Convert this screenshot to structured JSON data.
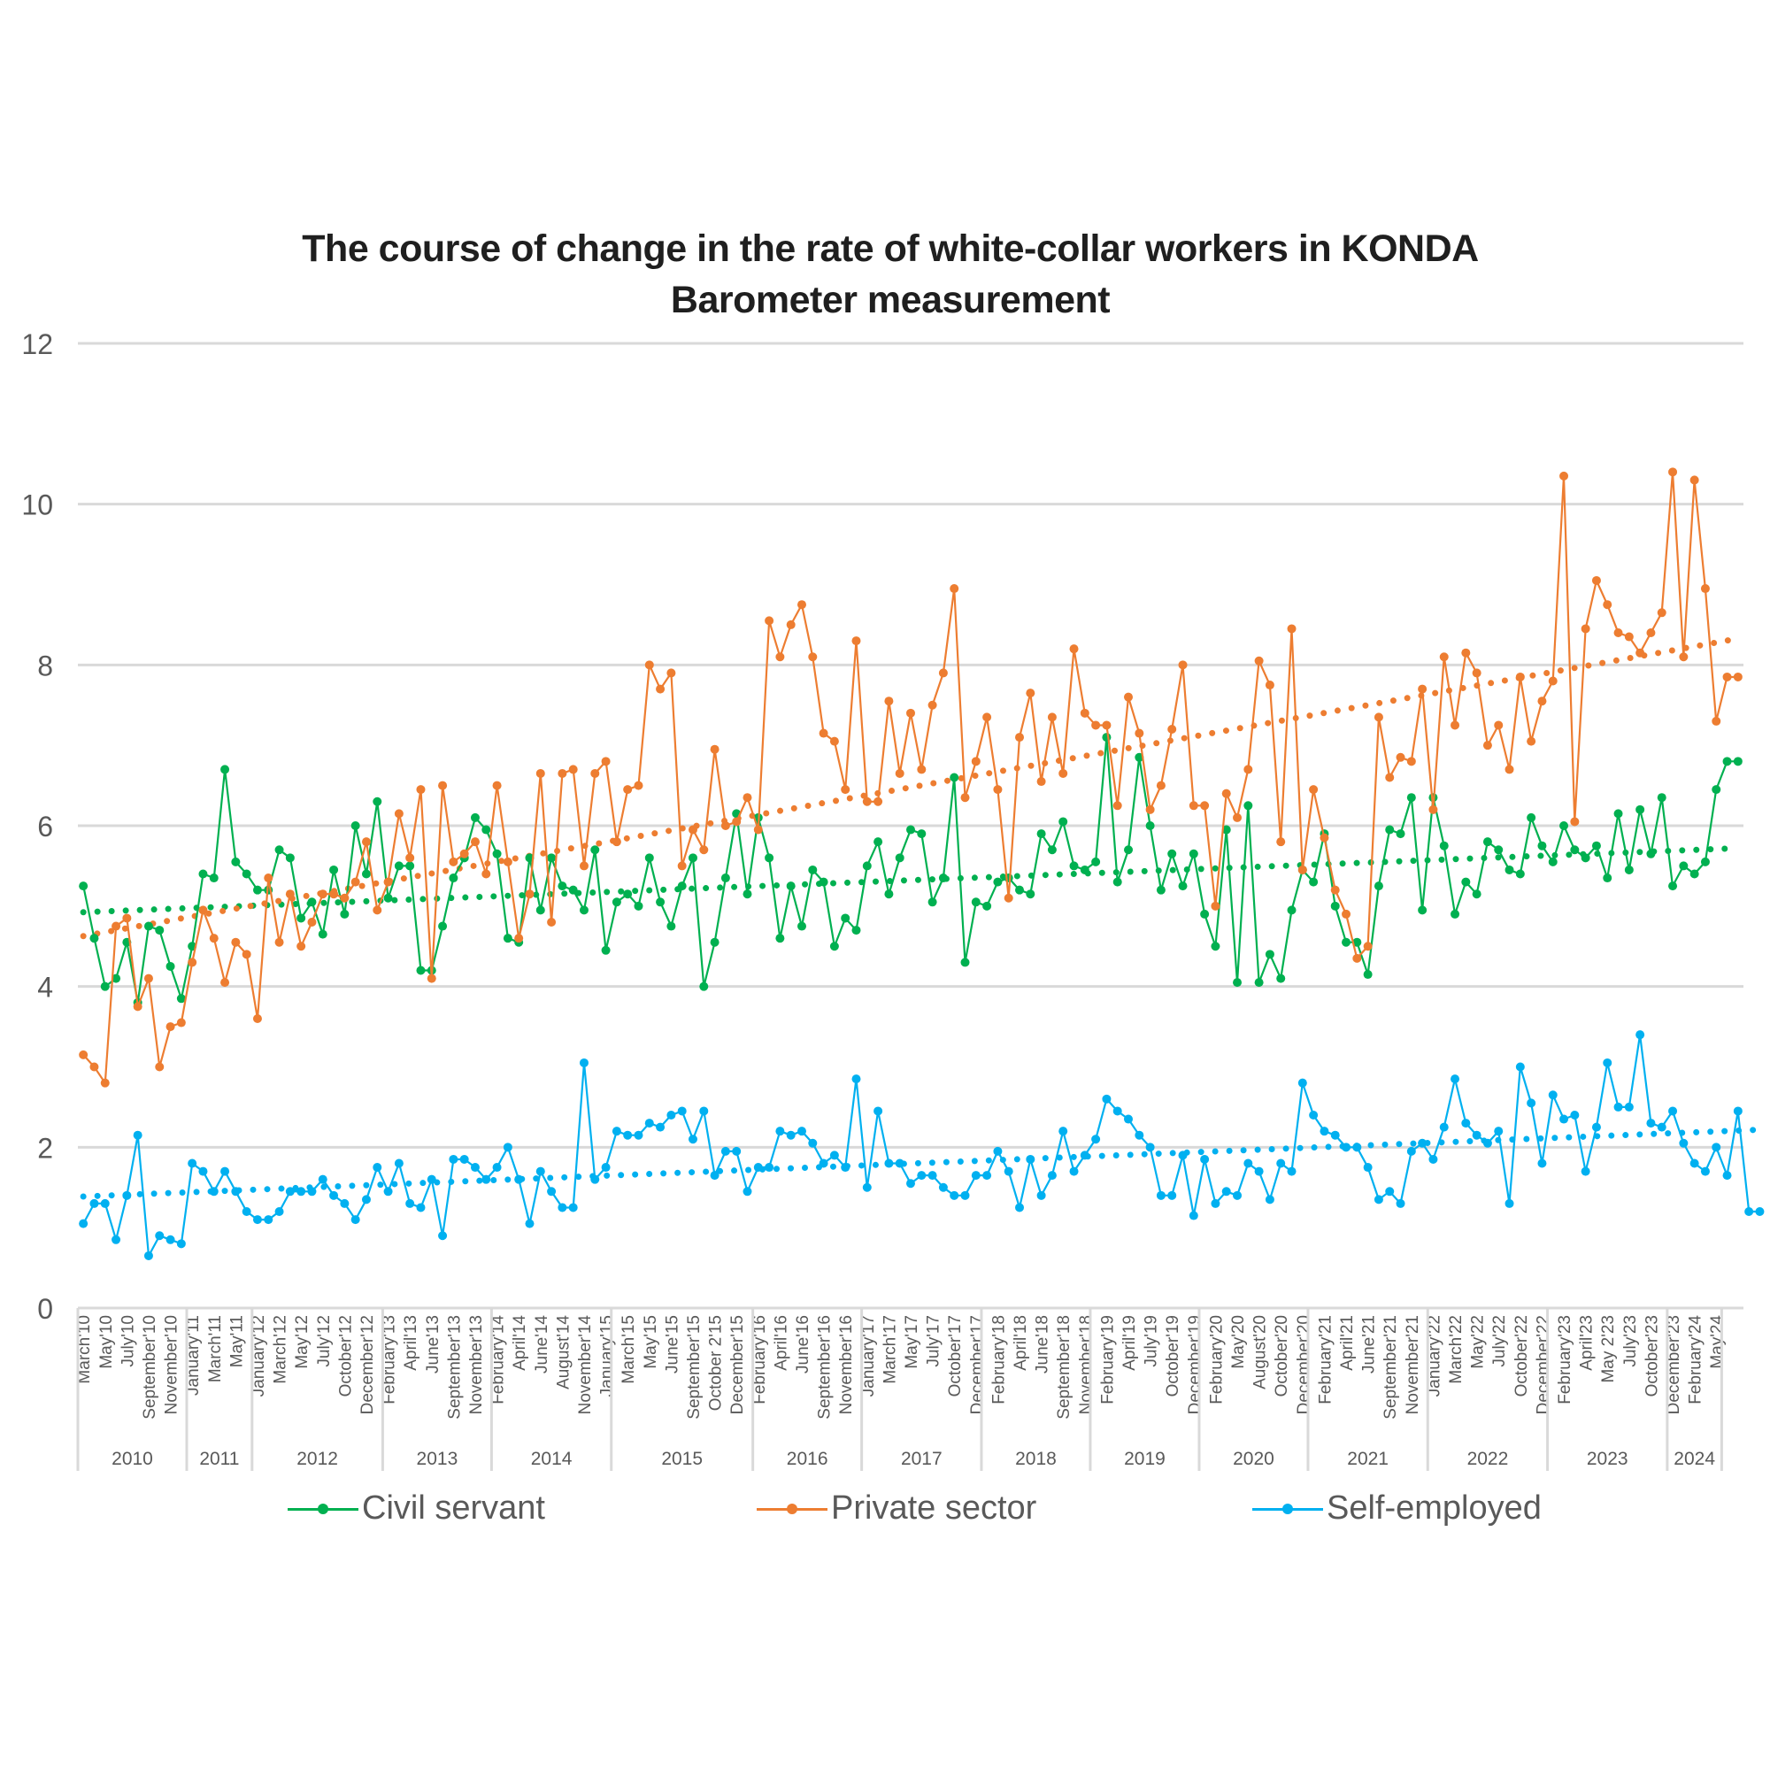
{
  "chart_data": {
    "type": "line",
    "title": "The course of change in the rate of white-collar workers in KONDA Barometer measurement",
    "title_lines": [
      "The course of change in the rate of white-collar workers in KONDA",
      "Barometer measurement"
    ],
    "xlabel": "",
    "ylabel": "",
    "ylim": [
      0,
      12
    ],
    "yticks": [
      0,
      2,
      4,
      6,
      8,
      10,
      12
    ],
    "grid": true,
    "legend_position": "bottom",
    "tick_labels": [
      "March'10",
      "May'10",
      "July'10",
      "September'10",
      "November'10",
      "January'11",
      "March'11",
      "May'11",
      "January'12",
      "March'12",
      "May'12",
      "July'12",
      "October'12",
      "December'12",
      "February'13",
      "April'13",
      "June'13",
      "September'13",
      "November'13",
      "February'14",
      "April'14",
      "June'14",
      "August'14",
      "November'14",
      "January'15",
      "March'15",
      "May'15",
      "June'15",
      "September'15",
      "October 2'15",
      "December'15",
      "February'16",
      "April'16",
      "June'16",
      "September'16",
      "November'16",
      "January'17",
      "March'17",
      "May'17",
      "July'17",
      "October'17",
      "December'17",
      "February'18",
      "April'18",
      "June'18",
      "September'18",
      "November'18",
      "February'19",
      "April'19",
      "July'19",
      "October'19",
      "December'19",
      "February'20",
      "May'20",
      "August'20",
      "October'20",
      "December'20",
      "February'21",
      "April'21",
      "June'21",
      "September'21",
      "November'21",
      "January'22",
      "March'22",
      "May'22",
      "July'22",
      "October'22",
      "December'22",
      "February'23",
      "April'23",
      "May 2'23",
      "July'23",
      "October'23",
      "December'23",
      "February'24",
      "May'24"
    ],
    "year_groups": [
      {
        "label": "2010",
        "start": 0,
        "end": 10
      },
      {
        "label": "2011",
        "start": 10,
        "end": 16
      },
      {
        "label": "2012",
        "start": 16,
        "end": 28
      },
      {
        "label": "2013",
        "start": 28,
        "end": 38
      },
      {
        "label": "2014",
        "start": 38,
        "end": 49
      },
      {
        "label": "2015",
        "start": 49,
        "end": 62
      },
      {
        "label": "2016",
        "start": 62,
        "end": 72
      },
      {
        "label": "2017",
        "start": 72,
        "end": 83
      },
      {
        "label": "2018",
        "start": 83,
        "end": 93
      },
      {
        "label": "2019",
        "start": 93,
        "end": 103
      },
      {
        "label": "2020",
        "start": 103,
        "end": 113
      },
      {
        "label": "2021",
        "start": 113,
        "end": 124
      },
      {
        "label": "2022",
        "start": 124,
        "end": 135
      },
      {
        "label": "2023",
        "start": 135,
        "end": 146
      },
      {
        "label": "2024",
        "start": 146,
        "end": 151
      }
    ],
    "series": [
      {
        "name": "Civil servant",
        "color": "#00b050",
        "trendline": "linear",
        "values": [
          5.25,
          4.6,
          4.0,
          4.1,
          4.55,
          3.8,
          4.75,
          4.7,
          4.25,
          3.85,
          4.5,
          5.4,
          5.35,
          6.7,
          5.55,
          5.4,
          5.2,
          5.2,
          5.7,
          5.6,
          4.85,
          5.05,
          4.65,
          5.45,
          4.9,
          6.0,
          5.4,
          6.3,
          5.1,
          5.5,
          5.5,
          4.2,
          4.2,
          4.75,
          5.35,
          5.6,
          6.1,
          5.95,
          5.65,
          4.6,
          4.55,
          5.6,
          4.95,
          5.6,
          5.25,
          5.2,
          4.95,
          5.7,
          4.45,
          5.05,
          5.15,
          5.0,
          5.6,
          5.05,
          4.75,
          5.25,
          5.6,
          4.0,
          4.55,
          5.35,
          6.15,
          5.15,
          6.1,
          5.6,
          4.6,
          5.25,
          4.75,
          5.45,
          5.3,
          4.5,
          4.85,
          4.7,
          5.5,
          5.8,
          5.15,
          5.6,
          5.95,
          5.9,
          5.05,
          5.35,
          6.6,
          4.3,
          5.05,
          5.0,
          5.3,
          5.35,
          5.2,
          5.15,
          5.9,
          5.7,
          6.05,
          5.5,
          5.45,
          5.55,
          7.1,
          5.3,
          5.7,
          6.85,
          6.0,
          5.2,
          5.65,
          5.25,
          5.65,
          4.9,
          4.5,
          5.95,
          4.05,
          6.25,
          4.05,
          4.4,
          4.1,
          4.95,
          5.45,
          5.3,
          5.9,
          5.0,
          4.55,
          4.55,
          4.15,
          5.25,
          5.95,
          5.9,
          6.35,
          4.95,
          6.35,
          5.75,
          4.9,
          5.3,
          5.15,
          5.8,
          5.7,
          5.45,
          5.4,
          6.1,
          5.75,
          5.55,
          6.0,
          5.7,
          5.6,
          5.75,
          5.35,
          6.15,
          5.45,
          6.2,
          5.65,
          6.35,
          5.25,
          5.5,
          5.4,
          5.55,
          6.45,
          6.8,
          6.8
        ]
      },
      {
        "name": "Private sector",
        "color": "#ed7d31",
        "trendline": "linear",
        "values": [
          3.15,
          3.0,
          2.8,
          4.75,
          4.85,
          3.75,
          4.1,
          3.0,
          3.5,
          3.55,
          4.3,
          4.95,
          4.6,
          4.05,
          4.55,
          4.4,
          3.6,
          5.35,
          4.55,
          5.15,
          4.5,
          4.8,
          5.15,
          5.15,
          5.1,
          5.3,
          5.8,
          4.95,
          5.3,
          6.15,
          5.6,
          6.45,
          4.1,
          6.5,
          5.55,
          5.65,
          5.8,
          5.4,
          6.5,
          5.55,
          4.6,
          5.15,
          6.65,
          4.8,
          6.65,
          6.7,
          5.5,
          6.65,
          6.8,
          5.8,
          6.45,
          6.5,
          8.0,
          7.7,
          7.9,
          5.5,
          5.95,
          5.7,
          6.95,
          6.0,
          6.05,
          6.35,
          5.95,
          8.55,
          8.1,
          8.5,
          8.75,
          8.1,
          7.15,
          7.05,
          6.45,
          8.3,
          6.3,
          6.3,
          7.55,
          6.65,
          7.4,
          6.7,
          7.5,
          7.9,
          8.95,
          6.35,
          6.8,
          7.35,
          6.45,
          5.1,
          7.1,
          7.65,
          6.55,
          7.35,
          6.65,
          8.2,
          7.4,
          7.25,
          7.25,
          6.25,
          7.6,
          7.15,
          6.2,
          6.5,
          7.2,
          8.0,
          6.25,
          6.25,
          5.0,
          6.4,
          6.1,
          6.7,
          8.05,
          7.75,
          5.8,
          8.45,
          5.45,
          6.45,
          5.85,
          5.2,
          4.9,
          4.35,
          4.5,
          7.35,
          6.6,
          6.85,
          6.8,
          7.7,
          6.2,
          8.1,
          7.25,
          8.15,
          7.9,
          7.0,
          7.25,
          6.7,
          7.85,
          7.05,
          7.55,
          7.8,
          10.35,
          6.05,
          8.45,
          9.05,
          8.75,
          8.4,
          8.35,
          8.15,
          8.4,
          8.65,
          10.4,
          8.1,
          10.3,
          8.95,
          7.3,
          7.85,
          7.85
        ]
      },
      {
        "name": "Self-employed",
        "color": "#00b0f0",
        "trendline": "linear",
        "values": [
          1.05,
          1.3,
          1.3,
          0.85,
          1.4,
          2.15,
          0.65,
          0.9,
          0.85,
          0.8,
          1.8,
          1.7,
          1.45,
          1.7,
          1.45,
          1.2,
          1.1,
          1.1,
          1.2,
          1.45,
          1.45,
          1.45,
          1.6,
          1.4,
          1.3,
          1.1,
          1.35,
          1.75,
          1.45,
          1.8,
          1.3,
          1.25,
          1.6,
          0.9,
          1.85,
          1.85,
          1.75,
          1.6,
          1.75,
          2.0,
          1.6,
          1.05,
          1.7,
          1.45,
          1.25,
          1.25,
          3.05,
          1.6,
          1.75,
          2.2,
          2.15,
          2.15,
          2.3,
          2.25,
          2.4,
          2.45,
          2.1,
          2.45,
          1.65,
          1.95,
          1.95,
          1.45,
          1.75,
          1.75,
          2.2,
          2.15,
          2.2,
          2.05,
          1.8,
          1.9,
          1.75,
          2.85,
          1.5,
          2.45,
          1.8,
          1.8,
          1.55,
          1.65,
          1.65,
          1.5,
          1.4,
          1.4,
          1.65,
          1.65,
          1.95,
          1.7,
          1.25,
          1.85,
          1.4,
          1.65,
          2.2,
          1.7,
          1.9,
          2.1,
          2.6,
          2.45,
          2.35,
          2.15,
          2.0,
          1.4,
          1.4,
          1.9,
          1.15,
          1.85,
          1.3,
          1.45,
          1.4,
          1.8,
          1.7,
          1.35,
          1.8,
          1.7,
          2.8,
          2.4,
          2.2,
          2.15,
          2.0,
          2.0,
          1.75,
          1.35,
          1.45,
          1.3,
          1.95,
          2.05,
          1.85,
          2.25,
          2.85,
          2.3,
          2.15,
          2.05,
          2.2,
          1.3,
          3.0,
          2.55,
          1.8,
          2.65,
          2.35,
          2.4,
          1.7,
          2.25,
          3.05,
          2.5,
          2.5,
          3.4,
          2.3,
          2.25,
          2.45,
          2.05,
          1.8,
          1.7,
          2.0,
          1.65,
          2.45,
          1.2,
          1.2
        ]
      }
    ]
  }
}
